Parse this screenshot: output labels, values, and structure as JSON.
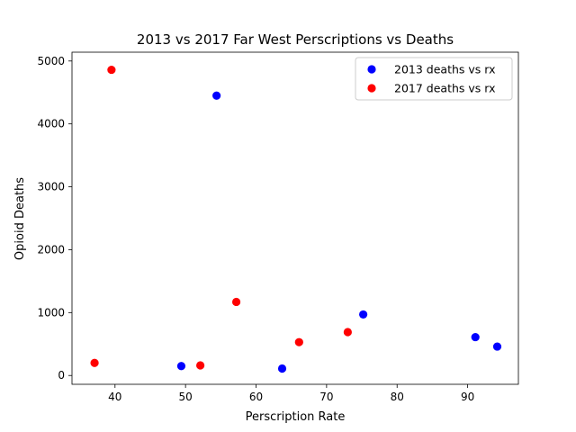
{
  "chart_data": {
    "type": "scatter",
    "title": "2013 vs 2017 Far West Perscriptions vs Deaths",
    "xlabel": "Perscription Rate",
    "ylabel": "Opioid Deaths",
    "xlim": [
      33.9,
      97.2
    ],
    "ylim": [
      -140,
      5140
    ],
    "xticks": [
      40,
      50,
      60,
      70,
      80,
      90
    ],
    "yticks": [
      0,
      1000,
      2000,
      3000,
      4000,
      5000
    ],
    "grid": false,
    "legend_position": "top-right",
    "series": [
      {
        "name": "2013 deaths vs rx",
        "color": "#0000ff",
        "points": [
          {
            "x": 49.4,
            "y": 150
          },
          {
            "x": 54.4,
            "y": 4450
          },
          {
            "x": 63.7,
            "y": 110
          },
          {
            "x": 75.2,
            "y": 970
          },
          {
            "x": 91.1,
            "y": 610
          },
          {
            "x": 94.2,
            "y": 460
          }
        ]
      },
      {
        "name": "2017 deaths vs rx",
        "color": "#ff0000",
        "points": [
          {
            "x": 37.1,
            "y": 200
          },
          {
            "x": 39.5,
            "y": 4860
          },
          {
            "x": 52.1,
            "y": 160
          },
          {
            "x": 57.2,
            "y": 1170
          },
          {
            "x": 66.1,
            "y": 530
          },
          {
            "x": 73.0,
            "y": 690
          }
        ]
      }
    ]
  }
}
